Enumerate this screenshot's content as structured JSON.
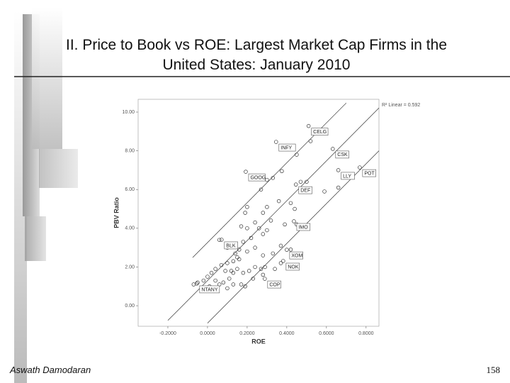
{
  "chart_data": {
    "type": "scatter",
    "title": "II. Price to Book vs ROE: Largest Market Cap Firms in the United States: January 2010",
    "x_label": "ROE",
    "y_label": "PBV Ratio",
    "annotation": "R² Linear = 0.592",
    "xlim": [
      -0.35,
      0.865
    ],
    "ylim": [
      -1.06,
      10.66
    ],
    "xticks": [
      {
        "value": -0.2,
        "label": "-0.2000"
      },
      {
        "value": 0,
        "label": "0.0000"
      },
      {
        "value": 0.2,
        "label": "0.2000"
      },
      {
        "value": 0.4,
        "label": "0.4000"
      },
      {
        "value": 0.6,
        "label": "0.6000"
      },
      {
        "value": 0.8,
        "label": "0.8000"
      }
    ],
    "yticks": [
      {
        "value": 0,
        "label": "0.00"
      },
      {
        "value": 2,
        "label": "2.00"
      },
      {
        "value": 4,
        "label": "4.00"
      },
      {
        "value": 6,
        "label": "6.00"
      },
      {
        "value": 8,
        "label": "8.00"
      },
      {
        "value": 10,
        "label": "10.00"
      }
    ],
    "series": [
      {
        "color": "#333333",
        "x": [
          0.52,
          0.45,
          0.375,
          0.33,
          0.3,
          0.47,
          0.5,
          0.59,
          0.66,
          0.27,
          0.2,
          0.19,
          0.28,
          0.3,
          0.36,
          0.42,
          0.44,
          0.32,
          0.24,
          0.2,
          0.17,
          0.26,
          0.28,
          0.3,
          0.39,
          0.45,
          0.22,
          0.18,
          0.14,
          0.1,
          0.06,
          0.16,
          0.2,
          0.24,
          0.28,
          0.33,
          0.37,
          0.42,
          0.14,
          0.15,
          0.16,
          0.13,
          0.1,
          0.07,
          0.04,
          0.09,
          0.12,
          0.13,
          0.15,
          0.18,
          0.21,
          0.24,
          0.27,
          0.29,
          0.28,
          0.02,
          0.0,
          -0.02,
          -0.05,
          -0.07,
          0.01,
          0.04,
          0.06,
          0.08,
          0.1,
          0.13,
          0.17,
          0.19,
          0.23,
          0.03,
          -0.03,
          0.11,
          0.37,
          0.34
        ],
        "values": [
          8.5,
          7.8,
          6.95,
          6.6,
          6.5,
          6.4,
          6.4,
          5.9,
          6.1,
          6.0,
          5.1,
          4.8,
          4.8,
          5.1,
          5.4,
          5.3,
          5.0,
          4.4,
          4.3,
          4.0,
          4.1,
          4.0,
          3.7,
          3.9,
          4.2,
          4.2,
          3.5,
          3.3,
          3.2,
          3.0,
          3.4,
          2.9,
          2.8,
          3.0,
          2.6,
          2.7,
          3.1,
          2.9,
          2.7,
          2.5,
          2.4,
          2.3,
          2.2,
          2.1,
          1.9,
          1.8,
          1.8,
          1.7,
          1.9,
          1.7,
          1.8,
          2.0,
          1.9,
          2.0,
          1.6,
          1.7,
          1.5,
          1.3,
          1.2,
          1.1,
          1.0,
          1.3,
          1.1,
          1.2,
          0.9,
          1.1,
          1.1,
          1.0,
          1.4,
          0.8,
          0.9,
          1.4,
          2.2,
          1.9
        ]
      },
      {
        "color": "#333333",
        "labels": [
          "CELG",
          "INFY",
          "CSK",
          "GOOG",
          "LLY",
          "POT",
          "DEF",
          "IMO",
          "BLK",
          "XOM",
          "NOK",
          "COP",
          "NTANY"
        ],
        "x": [
          0.51,
          0.346,
          0.632,
          0.193,
          0.66,
          0.768,
          0.446,
          0.436,
          0.071,
          0.4,
          0.382,
          0.289,
          -0.054
        ],
        "values": [
          9.28,
          8.46,
          8.1,
          6.92,
          7.0,
          7.14,
          6.26,
          4.36,
          3.41,
          2.89,
          2.31,
          1.39,
          1.14
        ]
      }
    ],
    "lines": [
      {
        "x": [
          -0.075,
          0.7
        ],
        "y": [
          2.49,
          10.47
        ]
      },
      {
        "x": [
          -0.2,
          0.865
        ],
        "y": [
          -0.76,
          10.21
        ]
      },
      {
        "x": [
          0.0,
          0.865
        ],
        "y": [
          -0.9,
          8.0
        ]
      }
    ]
  },
  "footer": {
    "author": "Aswath Damodaran",
    "page": "158"
  }
}
